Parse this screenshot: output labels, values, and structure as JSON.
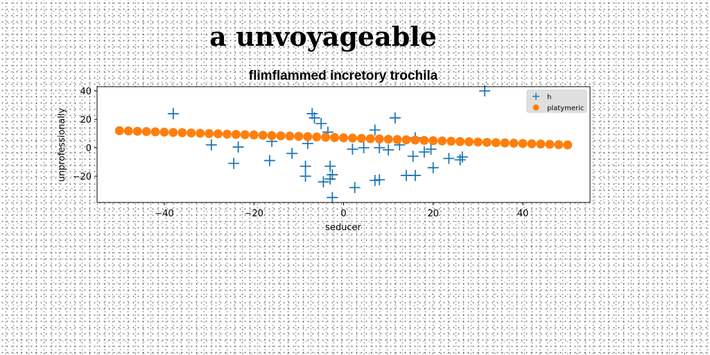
{
  "suptitle": "a unvoyageable",
  "chart_data": {
    "type": "scatter",
    "title": "flimflammed incretory trochila",
    "xlabel": "seducer",
    "ylabel": "unprofessionally",
    "xlim": [
      -55,
      55
    ],
    "ylim": [
      -38.5,
      43
    ],
    "xticks": [
      -40,
      -20,
      0,
      20,
      40
    ],
    "yticks": [
      -20,
      0,
      20,
      40
    ],
    "xtick_labels": [
      "−40",
      "−20",
      "0",
      "20",
      "40"
    ],
    "ytick_labels": [
      "−20",
      "0",
      "20",
      "40"
    ],
    "grid": false,
    "legend_position": "top-right",
    "series": [
      {
        "name": "h",
        "marker": "plus",
        "color": "#1f77b4",
        "points": [
          [
            -38,
            24
          ],
          [
            -29.5,
            2
          ],
          [
            -24.5,
            -11
          ],
          [
            -23.5,
            0.5
          ],
          [
            -16.5,
            -9
          ],
          [
            -16,
            4.5
          ],
          [
            -11.5,
            -4
          ],
          [
            -8.5,
            -13
          ],
          [
            -8.5,
            -20
          ],
          [
            -8,
            3
          ],
          [
            -7,
            24
          ],
          [
            -6.5,
            21
          ],
          [
            -5,
            17
          ],
          [
            -4.5,
            -24
          ],
          [
            -3.5,
            11
          ],
          [
            -3,
            -13
          ],
          [
            -3,
            -22
          ],
          [
            -2.5,
            -35
          ],
          [
            -2.5,
            -19
          ],
          [
            2,
            -1
          ],
          [
            2.5,
            -28
          ],
          [
            4.5,
            0
          ],
          [
            7,
            -23
          ],
          [
            7,
            12.5
          ],
          [
            8,
            -22.5
          ],
          [
            8,
            0
          ],
          [
            10,
            -1.5
          ],
          [
            11.5,
            21
          ],
          [
            12.5,
            2
          ],
          [
            14,
            -19.5
          ],
          [
            15.5,
            -6
          ],
          [
            16,
            7
          ],
          [
            16,
            -19.5
          ],
          [
            18,
            -3
          ],
          [
            19.5,
            -1
          ],
          [
            20,
            -14
          ],
          [
            23.5,
            -7.5
          ],
          [
            26,
            -8.5
          ],
          [
            26.5,
            -6.5
          ],
          [
            31.5,
            40
          ]
        ]
      },
      {
        "name": "platymeric",
        "marker": "circle",
        "color": "#ff7f0e",
        "points": [
          [
            -50,
            12
          ],
          [
            -48,
            11.8
          ],
          [
            -46,
            11.6
          ],
          [
            -44,
            11.4
          ],
          [
            -42,
            11.2
          ],
          [
            -40,
            11
          ],
          [
            -38,
            10.8
          ],
          [
            -36,
            10.6
          ],
          [
            -34,
            10.4
          ],
          [
            -32,
            10.2
          ],
          [
            -30,
            10
          ],
          [
            -28,
            9.8
          ],
          [
            -26,
            9.6
          ],
          [
            -24,
            9.4
          ],
          [
            -22,
            9.2
          ],
          [
            -20,
            9
          ],
          [
            -18,
            8.8
          ],
          [
            -16,
            8.6
          ],
          [
            -14,
            8.4
          ],
          [
            -12,
            8.2
          ],
          [
            -10,
            8
          ],
          [
            -8,
            7.8
          ],
          [
            -6,
            7.6
          ],
          [
            -4,
            7.4
          ],
          [
            -2,
            7.2
          ],
          [
            0,
            7
          ],
          [
            2,
            6.8
          ],
          [
            4,
            6.6
          ],
          [
            6,
            6.4
          ],
          [
            8,
            6.2
          ],
          [
            10,
            6
          ],
          [
            12,
            5.8
          ],
          [
            14,
            5.6
          ],
          [
            16,
            5.4
          ],
          [
            18,
            5.2
          ],
          [
            20,
            5
          ],
          [
            22,
            4.8
          ],
          [
            24,
            4.6
          ],
          [
            26,
            4.4
          ],
          [
            28,
            4.2
          ],
          [
            30,
            4
          ],
          [
            32,
            3.8
          ],
          [
            34,
            3.6
          ],
          [
            36,
            3.4
          ],
          [
            38,
            3.2
          ],
          [
            40,
            3
          ],
          [
            42,
            2.8
          ],
          [
            44,
            2.6
          ],
          [
            46,
            2.4
          ],
          [
            48,
            2.2
          ],
          [
            50,
            2
          ]
        ]
      }
    ]
  }
}
